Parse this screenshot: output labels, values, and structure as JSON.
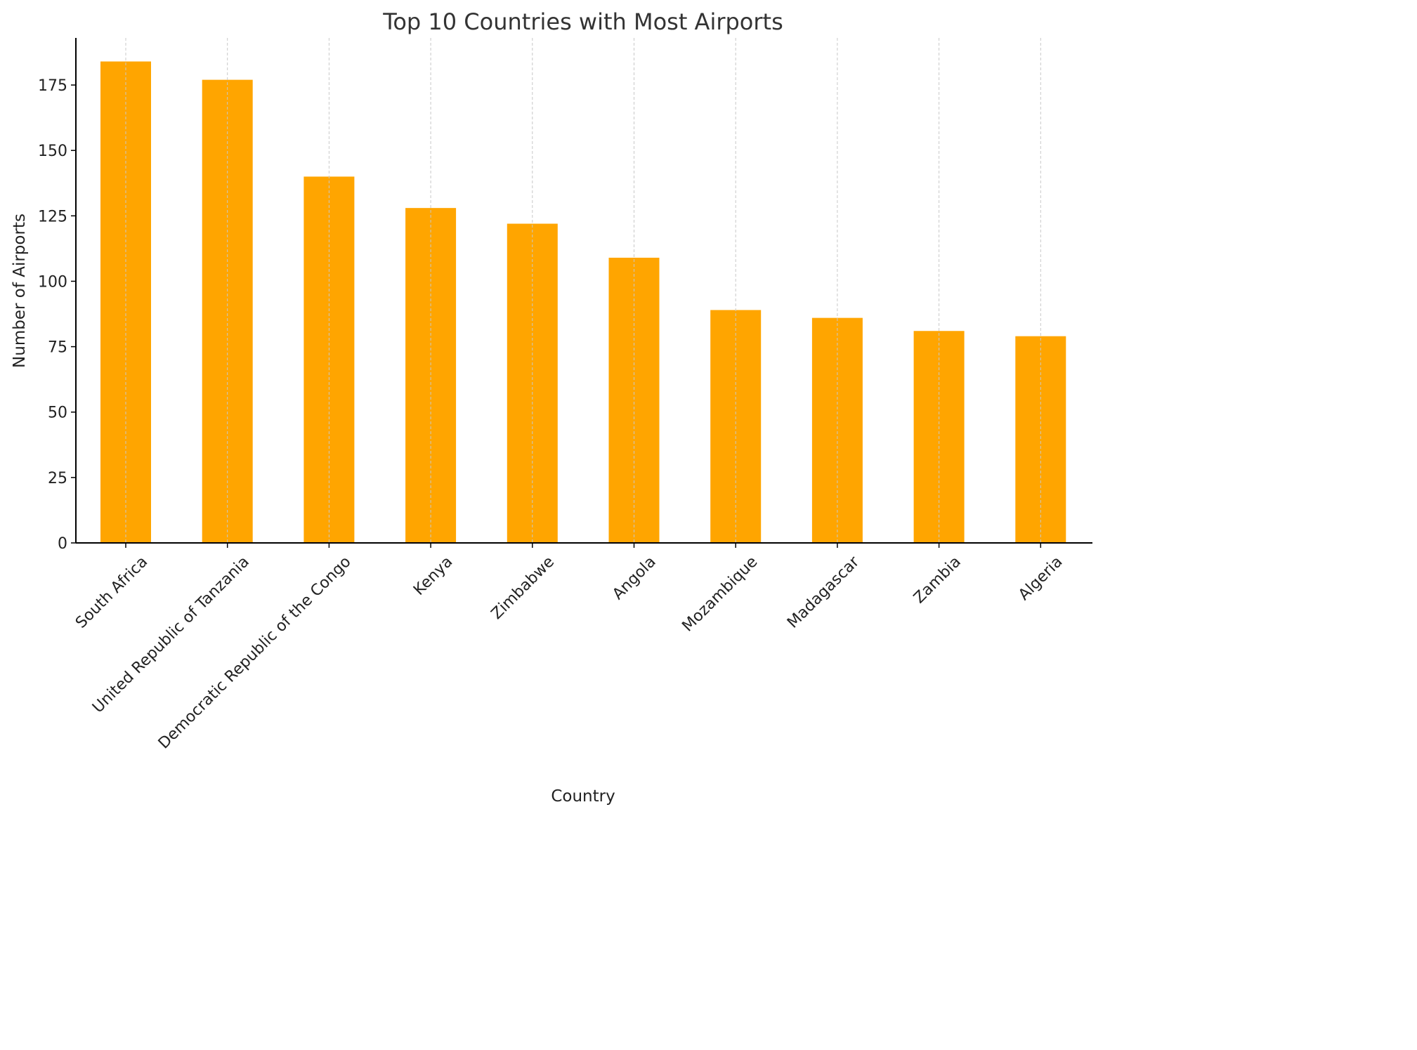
{
  "chart_data": {
    "type": "bar",
    "title": "Top 10 Countries with Most Airports",
    "xlabel": "Country",
    "ylabel": "Number of Airports",
    "categories": [
      "South Africa",
      "United Republic of Tanzania",
      "Democratic Republic of the Congo",
      "Kenya",
      "Zimbabwe",
      "Angola",
      "Mozambique",
      "Madagascar",
      "Zambia",
      "Algeria"
    ],
    "values": [
      184,
      177,
      140,
      128,
      122,
      109,
      89,
      86,
      81,
      79
    ],
    "yticks": [
      0,
      25,
      50,
      75,
      100,
      125,
      150,
      175
    ],
    "ylim": [
      0,
      193
    ],
    "bar_color": "#FFA500",
    "grid": "vertical dashed",
    "grid_color": "#c8c8c8"
  }
}
